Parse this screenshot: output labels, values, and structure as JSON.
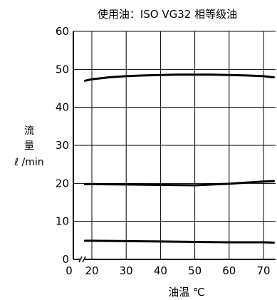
{
  "chart_data": {
    "type": "line",
    "title": "使用油：ISO VG32 相等级油",
    "xlabel": "油温 ℃",
    "ylabel_lines": [
      "流",
      "量",
      "ℓ /min"
    ],
    "x_ticks": [
      20,
      30,
      40,
      50,
      60,
      70
    ],
    "y_ticks": [
      0,
      10,
      20,
      30,
      40,
      50,
      60
    ],
    "x_origin_label": "0",
    "xlim": [
      15,
      73
    ],
    "ylim": [
      0,
      60
    ],
    "x_axis_break": true,
    "grid": true,
    "series": [
      {
        "x": [
          18,
          20,
          25,
          30,
          35,
          40,
          45,
          50,
          55,
          60,
          65,
          70,
          73
        ],
        "values": [
          47.0,
          47.4,
          47.9,
          48.2,
          48.4,
          48.5,
          48.6,
          48.6,
          48.6,
          48.5,
          48.4,
          48.2,
          47.9
        ]
      },
      {
        "x": [
          18,
          20,
          30,
          40,
          50,
          55,
          60,
          65,
          70,
          73
        ],
        "values": [
          19.8,
          19.8,
          19.7,
          19.6,
          19.5,
          19.7,
          19.9,
          20.2,
          20.5,
          20.6
        ]
      },
      {
        "x": [
          18,
          20,
          30,
          40,
          50,
          60,
          70,
          73
        ],
        "values": [
          4.9,
          4.9,
          4.8,
          4.7,
          4.6,
          4.5,
          4.5,
          4.4
        ]
      }
    ]
  }
}
